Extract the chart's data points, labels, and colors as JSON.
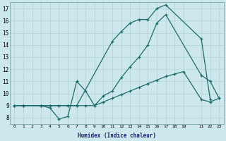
{
  "xlabel": "Humidex (Indice chaleur)",
  "bg_color": "#cde8ec",
  "line_color": "#1e6b6b",
  "grid_color": "#b8d8dc",
  "xlim": [
    -0.5,
    23.5
  ],
  "ylim": [
    7.5,
    17.5
  ],
  "xticks": [
    0,
    1,
    2,
    3,
    4,
    5,
    6,
    7,
    8,
    9,
    10,
    11,
    12,
    13,
    14,
    15,
    16,
    17,
    18,
    19,
    21,
    22,
    23
  ],
  "yticks": [
    8,
    9,
    10,
    11,
    12,
    13,
    14,
    15,
    16,
    17
  ],
  "line1_x": [
    0,
    1,
    3,
    4,
    5,
    6,
    7,
    11,
    12,
    13,
    14,
    15,
    16,
    17,
    21,
    22
  ],
  "line1_y": [
    9,
    9,
    9,
    9,
    9,
    9,
    9,
    14.3,
    15.1,
    15.8,
    16.1,
    16.1,
    17.0,
    17.3,
    14.5,
    9.5
  ],
  "line2_x": [
    0,
    1,
    3,
    4,
    5,
    6,
    7,
    8,
    9,
    10,
    11,
    12,
    13,
    14,
    15,
    16,
    17,
    21,
    22,
    23
  ],
  "line2_y": [
    9,
    9,
    9,
    8.8,
    7.9,
    8.1,
    11.0,
    10.2,
    9.0,
    9.8,
    10.2,
    11.3,
    12.2,
    13.0,
    14.0,
    15.8,
    16.5,
    11.5,
    11.0,
    9.6
  ],
  "line3_x": [
    0,
    1,
    3,
    4,
    5,
    6,
    7,
    8,
    9,
    10,
    11,
    12,
    13,
    14,
    15,
    16,
    17,
    18,
    19,
    21,
    22,
    23
  ],
  "line3_y": [
    9,
    9,
    9,
    9,
    9,
    9,
    9,
    9,
    9,
    9.3,
    9.6,
    9.9,
    10.2,
    10.5,
    10.8,
    11.1,
    11.4,
    11.6,
    11.8,
    9.5,
    9.3,
    9.6
  ]
}
